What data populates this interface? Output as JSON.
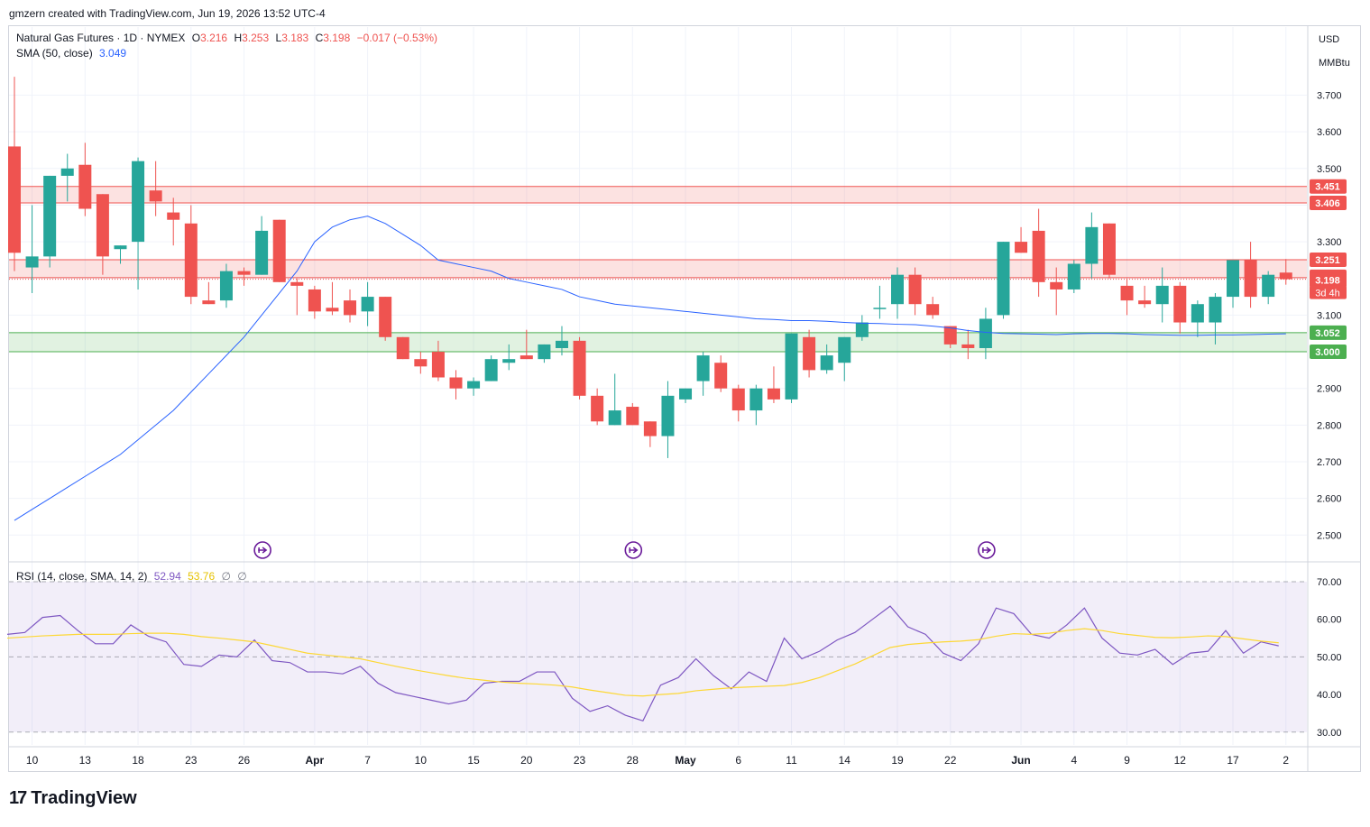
{
  "header": {
    "credit": "gmzern created with TradingView.com, Jun 19, 2026 13:52 UTC-4"
  },
  "legend": {
    "symbol": "Natural Gas Futures · 1D · NYMEX",
    "o_label": "O",
    "o_val": "3.216",
    "h_label": "H",
    "h_val": "3.253",
    "l_label": "L",
    "l_val": "3.183",
    "c_label": "C",
    "c_val": "3.198",
    "change": "−0.017 (−0.53%)",
    "sma_label": "SMA (50, close)",
    "sma_val": "3.049",
    "rsi_label": "RSI (14, close, SMA, 14, 2)",
    "rsi_val": "52.94",
    "rsi_sma_val": "53.76",
    "rsi_extra1": "∅",
    "rsi_extra2": "∅"
  },
  "axis_units": {
    "currency": "USD",
    "unit": "MMBtu"
  },
  "footer": {
    "brand": "TradingView",
    "mark": "17"
  },
  "colors": {
    "up": "#26a69a",
    "down": "#ef5350",
    "sma": "#2962ff",
    "rsi": "#7e57c2",
    "rsi_sma": "#fdd835",
    "resistance_zone": "#ef5350",
    "support_zone": "#4caf50"
  },
  "chart_data": [
    {
      "type": "candlestick",
      "title": "Natural Gas Futures · 1D · NYMEX",
      "ylim": [
        2.45,
        3.8
      ],
      "y_ticks": [
        3.7,
        3.6,
        3.5,
        3.4,
        3.3,
        3.2,
        3.1,
        3.0,
        2.9,
        2.8,
        2.7,
        2.6,
        2.5
      ],
      "y_tick_labels": [
        "3.700",
        "3.600",
        "3.500",
        "3.400",
        "3.300",
        "3.200",
        "3.100",
        "3.000",
        "2.900",
        "2.800",
        "2.700",
        "2.600",
        "2.500"
      ],
      "x_tick_labels": [
        {
          "i": 1,
          "label": "10"
        },
        {
          "i": 4,
          "label": "13"
        },
        {
          "i": 7,
          "label": "18"
        },
        {
          "i": 10,
          "label": "23"
        },
        {
          "i": 13,
          "label": "26"
        },
        {
          "i": 17,
          "label": "Apr"
        },
        {
          "i": 20,
          "label": "7"
        },
        {
          "i": 23,
          "label": "10"
        },
        {
          "i": 26,
          "label": "15"
        },
        {
          "i": 29,
          "label": "20"
        },
        {
          "i": 32,
          "label": "23"
        },
        {
          "i": 35,
          "label": "28"
        },
        {
          "i": 38,
          "label": "May"
        },
        {
          "i": 41,
          "label": "6"
        },
        {
          "i": 44,
          "label": "11"
        },
        {
          "i": 47,
          "label": "14"
        },
        {
          "i": 50,
          "label": "19"
        },
        {
          "i": 53,
          "label": "22"
        },
        {
          "i": 57,
          "label": "Jun"
        },
        {
          "i": 60,
          "label": "4"
        },
        {
          "i": 63,
          "label": "9"
        },
        {
          "i": 66,
          "label": "12"
        },
        {
          "i": 69,
          "label": "17"
        },
        {
          "i": 72,
          "label": "2"
        }
      ],
      "candles": [
        {
          "o": 3.56,
          "h": 3.75,
          "l": 3.22,
          "c": 3.27
        },
        {
          "o": 3.23,
          "h": 3.4,
          "l": 3.16,
          "c": 3.26
        },
        {
          "o": 3.26,
          "h": 3.48,
          "l": 3.23,
          "c": 3.48
        },
        {
          "o": 3.48,
          "h": 3.54,
          "l": 3.41,
          "c": 3.5
        },
        {
          "o": 3.51,
          "h": 3.57,
          "l": 3.37,
          "c": 3.39
        },
        {
          "o": 3.43,
          "h": 3.43,
          "l": 3.21,
          "c": 3.26
        },
        {
          "o": 3.28,
          "h": 3.29,
          "l": 3.24,
          "c": 3.29
        },
        {
          "o": 3.3,
          "h": 3.53,
          "l": 3.17,
          "c": 3.52
        },
        {
          "o": 3.44,
          "h": 3.52,
          "l": 3.37,
          "c": 3.41
        },
        {
          "o": 3.38,
          "h": 3.42,
          "l": 3.29,
          "c": 3.36
        },
        {
          "o": 3.35,
          "h": 3.4,
          "l": 3.13,
          "c": 3.15
        },
        {
          "o": 3.14,
          "h": 3.19,
          "l": 3.13,
          "c": 3.13
        },
        {
          "o": 3.14,
          "h": 3.24,
          "l": 3.12,
          "c": 3.22
        },
        {
          "o": 3.22,
          "h": 3.23,
          "l": 3.18,
          "c": 3.21
        },
        {
          "o": 3.21,
          "h": 3.37,
          "l": 3.21,
          "c": 3.33
        },
        {
          "o": 3.36,
          "h": 3.36,
          "l": 3.19,
          "c": 3.19
        },
        {
          "o": 3.19,
          "h": 3.2,
          "l": 3.1,
          "c": 3.18
        },
        {
          "o": 3.17,
          "h": 3.18,
          "l": 3.09,
          "c": 3.11
        },
        {
          "o": 3.12,
          "h": 3.19,
          "l": 3.1,
          "c": 3.11
        },
        {
          "o": 3.14,
          "h": 3.17,
          "l": 3.08,
          "c": 3.1
        },
        {
          "o": 3.11,
          "h": 3.19,
          "l": 3.07,
          "c": 3.15
        },
        {
          "o": 3.15,
          "h": 3.15,
          "l": 3.03,
          "c": 3.04
        },
        {
          "o": 3.04,
          "h": 3.04,
          "l": 2.98,
          "c": 2.98
        },
        {
          "o": 2.98,
          "h": 3.0,
          "l": 2.94,
          "c": 2.96
        },
        {
          "o": 3.0,
          "h": 3.03,
          "l": 2.92,
          "c": 2.93
        },
        {
          "o": 2.93,
          "h": 2.95,
          "l": 2.87,
          "c": 2.9
        },
        {
          "o": 2.9,
          "h": 2.93,
          "l": 2.88,
          "c": 2.92
        },
        {
          "o": 2.92,
          "h": 2.99,
          "l": 2.92,
          "c": 2.98
        },
        {
          "o": 2.97,
          "h": 3.02,
          "l": 2.95,
          "c": 2.98
        },
        {
          "o": 2.99,
          "h": 3.06,
          "l": 2.98,
          "c": 2.98
        },
        {
          "o": 2.98,
          "h": 3.02,
          "l": 2.97,
          "c": 3.02
        },
        {
          "o": 3.01,
          "h": 3.07,
          "l": 2.99,
          "c": 3.03
        },
        {
          "o": 3.03,
          "h": 3.04,
          "l": 2.87,
          "c": 2.88
        },
        {
          "o": 2.88,
          "h": 2.9,
          "l": 2.8,
          "c": 2.81
        },
        {
          "o": 2.8,
          "h": 2.94,
          "l": 2.8,
          "c": 2.84
        },
        {
          "o": 2.85,
          "h": 2.86,
          "l": 2.8,
          "c": 2.8
        },
        {
          "o": 2.81,
          "h": 2.81,
          "l": 2.74,
          "c": 2.77
        },
        {
          "o": 2.77,
          "h": 2.92,
          "l": 2.71,
          "c": 2.88
        },
        {
          "o": 2.87,
          "h": 2.9,
          "l": 2.86,
          "c": 2.9
        },
        {
          "o": 2.92,
          "h": 3.0,
          "l": 2.88,
          "c": 2.99
        },
        {
          "o": 2.97,
          "h": 2.99,
          "l": 2.89,
          "c": 2.9
        },
        {
          "o": 2.9,
          "h": 2.91,
          "l": 2.81,
          "c": 2.84
        },
        {
          "o": 2.84,
          "h": 2.91,
          "l": 2.8,
          "c": 2.9
        },
        {
          "o": 2.9,
          "h": 2.96,
          "l": 2.86,
          "c": 2.87
        },
        {
          "o": 2.87,
          "h": 3.05,
          "l": 2.86,
          "c": 3.05
        },
        {
          "o": 3.04,
          "h": 3.06,
          "l": 2.93,
          "c": 2.95
        },
        {
          "o": 2.95,
          "h": 3.02,
          "l": 2.94,
          "c": 2.99
        },
        {
          "o": 2.97,
          "h": 3.04,
          "l": 2.92,
          "c": 3.04
        },
        {
          "o": 3.04,
          "h": 3.1,
          "l": 3.03,
          "c": 3.08
        },
        {
          "o": 3.12,
          "h": 3.18,
          "l": 3.09,
          "c": 3.12
        },
        {
          "o": 3.13,
          "h": 3.23,
          "l": 3.09,
          "c": 3.21
        },
        {
          "o": 3.21,
          "h": 3.23,
          "l": 3.1,
          "c": 3.13
        },
        {
          "o": 3.13,
          "h": 3.15,
          "l": 3.09,
          "c": 3.1
        },
        {
          "o": 3.07,
          "h": 3.07,
          "l": 3.01,
          "c": 3.02
        },
        {
          "o": 3.02,
          "h": 3.06,
          "l": 2.98,
          "c": 3.01
        },
        {
          "o": 3.01,
          "h": 3.12,
          "l": 2.98,
          "c": 3.09
        },
        {
          "o": 3.1,
          "h": 3.3,
          "l": 3.09,
          "c": 3.3
        },
        {
          "o": 3.3,
          "h": 3.34,
          "l": 3.27,
          "c": 3.27
        },
        {
          "o": 3.33,
          "h": 3.39,
          "l": 3.15,
          "c": 3.19
        },
        {
          "o": 3.19,
          "h": 3.23,
          "l": 3.1,
          "c": 3.17
        },
        {
          "o": 3.17,
          "h": 3.25,
          "l": 3.16,
          "c": 3.24
        },
        {
          "o": 3.24,
          "h": 3.38,
          "l": 3.2,
          "c": 3.34
        },
        {
          "o": 3.35,
          "h": 3.35,
          "l": 3.2,
          "c": 3.21
        },
        {
          "o": 3.18,
          "h": 3.2,
          "l": 3.1,
          "c": 3.14
        },
        {
          "o": 3.14,
          "h": 3.18,
          "l": 3.12,
          "c": 3.13
        },
        {
          "o": 3.13,
          "h": 3.23,
          "l": 3.08,
          "c": 3.18
        },
        {
          "o": 3.18,
          "h": 3.19,
          "l": 3.05,
          "c": 3.08
        },
        {
          "o": 3.08,
          "h": 3.14,
          "l": 3.04,
          "c": 3.13
        },
        {
          "o": 3.08,
          "h": 3.16,
          "l": 3.02,
          "c": 3.15
        },
        {
          "o": 3.15,
          "h": 3.25,
          "l": 3.12,
          "c": 3.25
        },
        {
          "o": 3.25,
          "h": 3.3,
          "l": 3.12,
          "c": 3.15
        },
        {
          "o": 3.15,
          "h": 3.22,
          "l": 3.13,
          "c": 3.21
        },
        {
          "o": 3.216,
          "h": 3.253,
          "l": 3.183,
          "c": 3.198
        }
      ],
      "sma": [
        2.54,
        2.57,
        2.6,
        2.63,
        2.66,
        2.69,
        2.72,
        2.76,
        2.8,
        2.84,
        2.89,
        2.94,
        2.99,
        3.04,
        3.1,
        3.16,
        3.22,
        3.3,
        3.34,
        3.36,
        3.37,
        3.35,
        3.32,
        3.29,
        3.25,
        3.24,
        3.23,
        3.22,
        3.2,
        3.19,
        3.18,
        3.17,
        3.15,
        3.14,
        3.13,
        3.125,
        3.12,
        3.115,
        3.11,
        3.105,
        3.1,
        3.095,
        3.09,
        3.088,
        3.085,
        3.085,
        3.083,
        3.08,
        3.078,
        3.077,
        3.075,
        3.074,
        3.07,
        3.065,
        3.058,
        3.053,
        3.05,
        3.049,
        3.048,
        3.047,
        3.049,
        3.05,
        3.05,
        3.049,
        3.047,
        3.046,
        3.045,
        3.045,
        3.046,
        3.046,
        3.047,
        3.048,
        3.049
      ],
      "levels": [
        {
          "label": "3.451",
          "value": 3.451,
          "color": "#ef5350"
        },
        {
          "label": "3.406",
          "value": 3.406,
          "color": "#ef5350"
        },
        {
          "label": "3.251",
          "value": 3.251,
          "color": "#ef5350"
        },
        {
          "label": "3.202",
          "value": 3.202,
          "color": "#ef5350"
        },
        {
          "label": "3.198",
          "value": 3.198,
          "color": "#ef5350"
        },
        {
          "label": "3.052",
          "value": 3.052,
          "color": "#4caf50"
        },
        {
          "label": "3.000",
          "value": 3.0,
          "color": "#4caf50"
        }
      ],
      "countdown": "3d 4h",
      "zones": [
        {
          "from": 3.406,
          "to": 3.451,
          "color": "#ef5350"
        },
        {
          "from": 3.202,
          "to": 3.251,
          "color": "#ef5350"
        },
        {
          "from": 3.0,
          "to": 3.052,
          "color": "#4caf50"
        }
      ],
      "event_markers_at": [
        14,
        35,
        55
      ]
    },
    {
      "type": "line",
      "title": "RSI (14, close, SMA, 14, 2)",
      "ylim": [
        27,
        73
      ],
      "y_ticks": [
        70,
        60,
        50,
        40,
        30
      ],
      "y_tick_labels": [
        "70.00",
        "60.00",
        "50.00",
        "40.00",
        "30.00"
      ],
      "band": [
        30,
        70
      ],
      "mid": 50,
      "series": [
        {
          "name": "RSI",
          "values": [
            56,
            56.5,
            60.5,
            61,
            57,
            53.5,
            53.5,
            58.5,
            55.5,
            54,
            48,
            47.5,
            50.5,
            50,
            54.5,
            49,
            48.5,
            46,
            46,
            45.5,
            47.5,
            43,
            40.5,
            39.5,
            38.5,
            37.5,
            38.5,
            43,
            43.5,
            43.5,
            46,
            46,
            39,
            35.5,
            37,
            34.5,
            33,
            42.5,
            44.5,
            49.5,
            45,
            41.5,
            46,
            43.5,
            55,
            49.5,
            51.5,
            54.5,
            56.5,
            60,
            63.5,
            58,
            56,
            51,
            49,
            53.5,
            63,
            61.5,
            56,
            55,
            58.5,
            63,
            55,
            51,
            50.5,
            52,
            48,
            51,
            51.5,
            57,
            51,
            54,
            52.94
          ]
        },
        {
          "name": "RSI SMA",
          "values": [
            55,
            55.3,
            55.6,
            55.8,
            56,
            56,
            56,
            56.2,
            56.3,
            56.3,
            56,
            55.4,
            55,
            54.5,
            54,
            53,
            52,
            51,
            50.5,
            50,
            49.5,
            48.5,
            47.5,
            46.6,
            45.8,
            45,
            44.3,
            43.8,
            43.3,
            43,
            42.8,
            42.5,
            42,
            41.2,
            40.5,
            39.8,
            39.6,
            40,
            40.3,
            41,
            41.4,
            41.8,
            42,
            42.2,
            42.4,
            43.2,
            44.5,
            46.3,
            48.1,
            50.3,
            52.5,
            53.3,
            53.7,
            54,
            54.2,
            54.6,
            55.5,
            56.2,
            56,
            56.3,
            57,
            57.5,
            57,
            56.2,
            55.7,
            55.2,
            55.1,
            55.3,
            55.6,
            55.4,
            54.8,
            54.2,
            53.76
          ]
        }
      ]
    }
  ]
}
